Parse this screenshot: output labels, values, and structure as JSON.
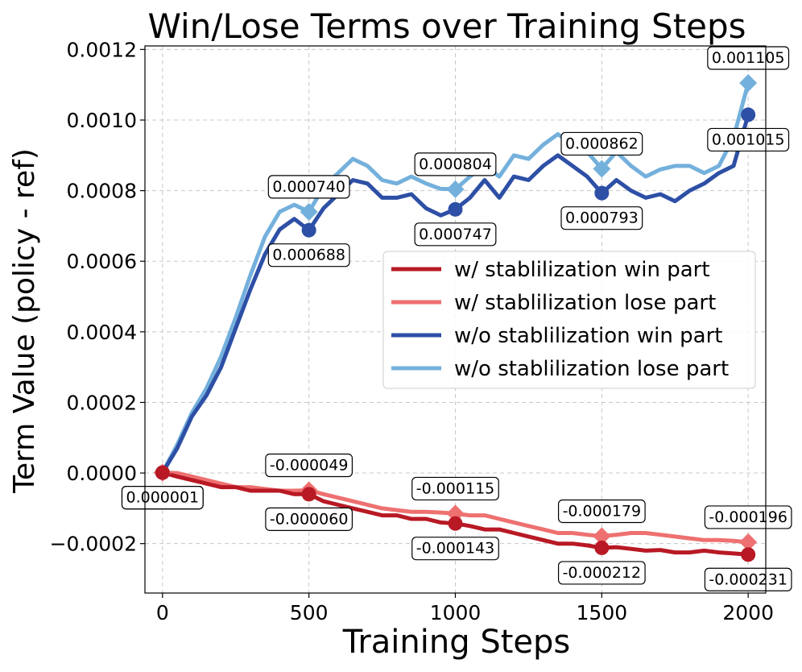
{
  "chart_data": {
    "type": "line",
    "title": "Win/Lose Terms over Training Steps",
    "xlabel": "Training Steps",
    "ylabel": "Term Value (policy - ref)",
    "xlim": [
      -60,
      2060
    ],
    "ylim": [
      -0.00034,
      0.00121
    ],
    "grid": true,
    "legend_position": "center-right",
    "xticks": [
      0,
      500,
      1000,
      1500,
      2000
    ],
    "xtick_labels": [
      "0",
      "500",
      "1000",
      "1500",
      "2000"
    ],
    "yticks": [
      -0.0002,
      0.0,
      0.0002,
      0.0004,
      0.0006,
      0.0008,
      0.001,
      0.0012
    ],
    "ytick_labels": [
      "−0.0002",
      "0.0000",
      "0.0002",
      "0.0004",
      "0.0006",
      "0.0008",
      "0.0010",
      "0.0012"
    ],
    "series": [
      {
        "name": "w/o stablilization lose part",
        "color": "#74b0dc",
        "marker": "diamond",
        "x": [
          0,
          50,
          100,
          150,
          200,
          250,
          300,
          350,
          400,
          450,
          500,
          550,
          600,
          650,
          700,
          750,
          800,
          850,
          900,
          950,
          1000,
          1050,
          1100,
          1150,
          1200,
          1250,
          1300,
          1350,
          1400,
          1450,
          1500,
          1550,
          1600,
          1650,
          1700,
          1750,
          1800,
          1850,
          1900,
          1950,
          2000
        ],
        "y": [
          1e-06,
          8e-05,
          0.00017,
          0.00024,
          0.00033,
          0.00044,
          0.00056,
          0.00067,
          0.00074,
          0.00076,
          0.00074,
          0.00081,
          0.00085,
          0.00089,
          0.00087,
          0.00083,
          0.00082,
          0.00084,
          0.00082,
          0.000805,
          0.000804,
          0.00084,
          0.00087,
          0.00084,
          0.0009,
          0.00089,
          0.00093,
          0.00096,
          0.00093,
          0.00091,
          0.000862,
          0.00091,
          0.00087,
          0.00084,
          0.00086,
          0.00087,
          0.00087,
          0.00085,
          0.00087,
          0.00095,
          0.001105
        ]
      },
      {
        "name": "w/o stablilization win part",
        "color": "#2d4fa5",
        "marker": "circle",
        "x": [
          0,
          50,
          100,
          150,
          200,
          250,
          300,
          350,
          400,
          450,
          500,
          550,
          600,
          650,
          700,
          750,
          800,
          850,
          900,
          950,
          1000,
          1050,
          1100,
          1150,
          1200,
          1250,
          1300,
          1350,
          1400,
          1450,
          1500,
          1550,
          1600,
          1650,
          1700,
          1750,
          1800,
          1850,
          1900,
          1950,
          2000
        ],
        "y": [
          1e-06,
          7e-05,
          0.00016,
          0.00022,
          0.0003,
          0.00041,
          0.00052,
          0.00062,
          0.00069,
          0.00072,
          0.000688,
          0.00075,
          0.00079,
          0.00083,
          0.00082,
          0.00078,
          0.00078,
          0.00079,
          0.00075,
          0.00073,
          0.000747,
          0.00078,
          0.00083,
          0.00078,
          0.00084,
          0.00083,
          0.00087,
          0.0009,
          0.00087,
          0.00084,
          0.000793,
          0.00083,
          0.0008,
          0.00078,
          0.00079,
          0.00077,
          0.0008,
          0.00082,
          0.00085,
          0.00087,
          0.001015
        ]
      },
      {
        "name": "w/ stablilization lose part",
        "color": "#ee7070",
        "marker": "diamond",
        "x": [
          0,
          50,
          100,
          150,
          200,
          250,
          300,
          350,
          400,
          450,
          500,
          550,
          600,
          650,
          700,
          750,
          800,
          850,
          900,
          950,
          1000,
          1050,
          1100,
          1150,
          1200,
          1250,
          1300,
          1350,
          1400,
          1450,
          1500,
          1550,
          1600,
          1650,
          1700,
          1750,
          1800,
          1850,
          1900,
          1950,
          2000
        ],
        "y": [
          1e-06,
          0.0,
          -1e-05,
          -2e-05,
          -3e-05,
          -4e-05,
          -4e-05,
          -4.5e-05,
          -5e-05,
          -5e-05,
          -4.9e-05,
          -6e-05,
          -7e-05,
          -8e-05,
          -9e-05,
          -0.0001,
          -0.000105,
          -0.00011,
          -0.00011,
          -0.000112,
          -0.000115,
          -0.00012,
          -0.00012,
          -0.00013,
          -0.00014,
          -0.00015,
          -0.00016,
          -0.00017,
          -0.00017,
          -0.000175,
          -0.000179,
          -0.000175,
          -0.00017,
          -0.00017,
          -0.000175,
          -0.00018,
          -0.000185,
          -0.00019,
          -0.00019,
          -0.000192,
          -0.000196
        ]
      },
      {
        "name": "w/ stablilization win part",
        "color": "#b81924",
        "marker": "circle",
        "x": [
          0,
          50,
          100,
          150,
          200,
          250,
          300,
          350,
          400,
          450,
          500,
          550,
          600,
          650,
          700,
          750,
          800,
          850,
          900,
          950,
          1000,
          1050,
          1100,
          1150,
          1200,
          1250,
          1300,
          1350,
          1400,
          1450,
          1500,
          1550,
          1600,
          1650,
          1700,
          1750,
          1800,
          1850,
          1900,
          1950,
          2000
        ],
        "y": [
          1e-06,
          -1e-05,
          -2e-05,
          -3e-05,
          -4e-05,
          -4e-05,
          -5e-05,
          -5e-05,
          -5e-05,
          -6e-05,
          -6e-05,
          -8e-05,
          -9e-05,
          -0.0001,
          -0.00011,
          -0.00012,
          -0.00012,
          -0.00013,
          -0.00013,
          -0.00014,
          -0.000143,
          -0.00015,
          -0.00016,
          -0.00016,
          -0.00017,
          -0.00018,
          -0.00019,
          -0.0002,
          -0.0002,
          -0.000205,
          -0.000212,
          -0.00021,
          -0.000215,
          -0.00022,
          -0.000218,
          -0.000225,
          -0.000225,
          -0.00022,
          -0.000225,
          -0.000228,
          -0.000231
        ]
      }
    ],
    "legend_order": [
      "w/ stablilization win part",
      "w/ stablilization lose part",
      "w/o stablilization win part",
      "w/o stablilization lose part"
    ],
    "annotations": [
      {
        "x": 0,
        "y": 1e-06,
        "text": "0.000001",
        "series": "w/o stablilization lose part",
        "place": "below"
      },
      {
        "x": 0,
        "y": 1e-06,
        "text": "0.000001",
        "series": "w/ stablilization win part",
        "place": "below"
      },
      {
        "x": 500,
        "y": 0.00074,
        "text": "0.000740",
        "series": "w/o stablilization lose part",
        "place": "above"
      },
      {
        "x": 500,
        "y": 0.000688,
        "text": "0.000688",
        "series": "w/o stablilization win part",
        "place": "below"
      },
      {
        "x": 1000,
        "y": 0.000804,
        "text": "0.000804",
        "series": "w/o stablilization lose part",
        "place": "above"
      },
      {
        "x": 1000,
        "y": 0.000747,
        "text": "0.000747",
        "series": "w/o stablilization win part",
        "place": "below"
      },
      {
        "x": 1500,
        "y": 0.000862,
        "text": "0.000862",
        "series": "w/o stablilization lose part",
        "place": "above"
      },
      {
        "x": 1500,
        "y": 0.000793,
        "text": "0.000793",
        "series": "w/o stablilization win part",
        "place": "below"
      },
      {
        "x": 2000,
        "y": 0.001105,
        "text": "0.001105",
        "series": "w/o stablilization lose part",
        "place": "above"
      },
      {
        "x": 2000,
        "y": 0.001015,
        "text": "0.001015",
        "series": "w/o stablilization win part",
        "place": "below"
      },
      {
        "x": 500,
        "y": -4.9e-05,
        "text": "-0.000049",
        "series": "w/ stablilization lose part",
        "place": "above"
      },
      {
        "x": 500,
        "y": -6e-05,
        "text": "-0.000060",
        "series": "w/ stablilization win part",
        "place": "below"
      },
      {
        "x": 1000,
        "y": -0.000115,
        "text": "-0.000115",
        "series": "w/ stablilization lose part",
        "place": "above"
      },
      {
        "x": 1000,
        "y": -0.000143,
        "text": "-0.000143",
        "series": "w/ stablilization win part",
        "place": "below"
      },
      {
        "x": 1500,
        "y": -0.000179,
        "text": "-0.000179",
        "series": "w/ stablilization lose part",
        "place": "above"
      },
      {
        "x": 1500,
        "y": -0.000212,
        "text": "-0.000212",
        "series": "w/ stablilization win part",
        "place": "below"
      },
      {
        "x": 2000,
        "y": -0.000196,
        "text": "-0.000196",
        "series": "w/ stablilization lose part",
        "place": "above"
      },
      {
        "x": 2000,
        "y": -0.000231,
        "text": "-0.000231",
        "series": "w/ stablilization win part",
        "place": "below"
      }
    ]
  }
}
